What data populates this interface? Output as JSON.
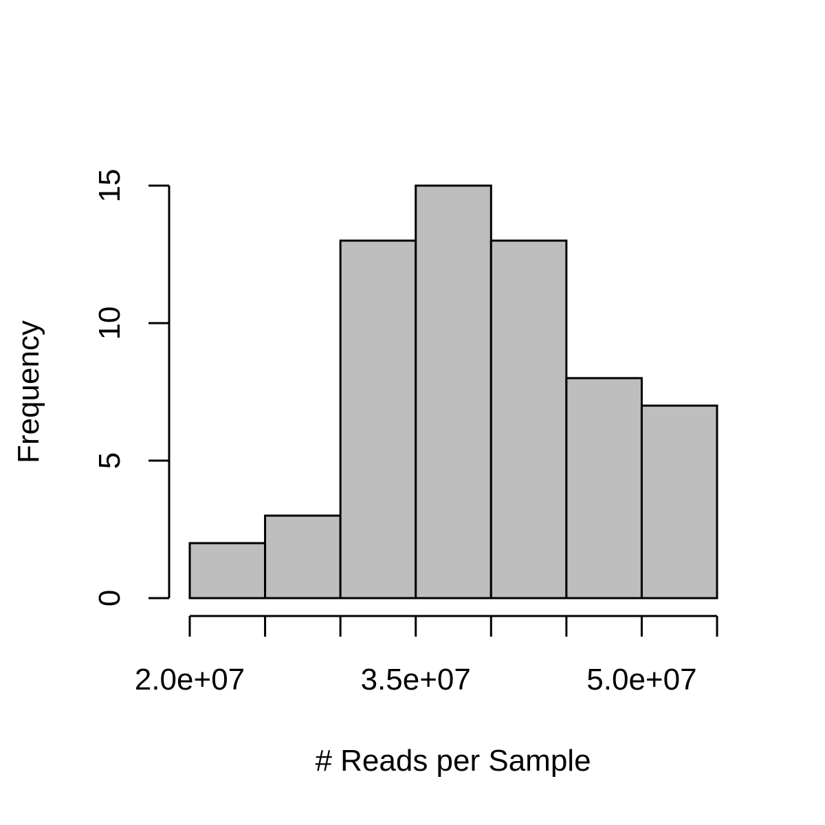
{
  "chart_data": {
    "type": "bar",
    "chart_kind": "histogram",
    "title": "",
    "xlabel": "# Reads per Sample",
    "ylabel": "Frequency",
    "bins": [
      {
        "start": 20000000,
        "end": 25000000,
        "count": 2
      },
      {
        "start": 25000000,
        "end": 30000000,
        "count": 3
      },
      {
        "start": 30000000,
        "end": 35000000,
        "count": 13
      },
      {
        "start": 35000000,
        "end": 40000000,
        "count": 15
      },
      {
        "start": 40000000,
        "end": 45000000,
        "count": 13
      },
      {
        "start": 45000000,
        "end": 50000000,
        "count": 8
      },
      {
        "start": 50000000,
        "end": 55000000,
        "count": 7
      }
    ],
    "xlim": [
      20000000,
      55000000
    ],
    "ylim": [
      0,
      15
    ],
    "x_ticks": [
      20000000,
      25000000,
      30000000,
      35000000,
      40000000,
      45000000,
      50000000,
      55000000
    ],
    "x_tick_labels": [
      {
        "value": 20000000,
        "label": "2.0e+07"
      },
      {
        "value": 35000000,
        "label": "3.5e+07"
      },
      {
        "value": 50000000,
        "label": "5.0e+07"
      }
    ],
    "y_ticks": [
      {
        "value": 0,
        "label": "0"
      },
      {
        "value": 5,
        "label": "5"
      },
      {
        "value": 10,
        "label": "10"
      },
      {
        "value": 15,
        "label": "15"
      }
    ],
    "bar_color": "#bebebe",
    "grid": false,
    "legend": "none"
  }
}
